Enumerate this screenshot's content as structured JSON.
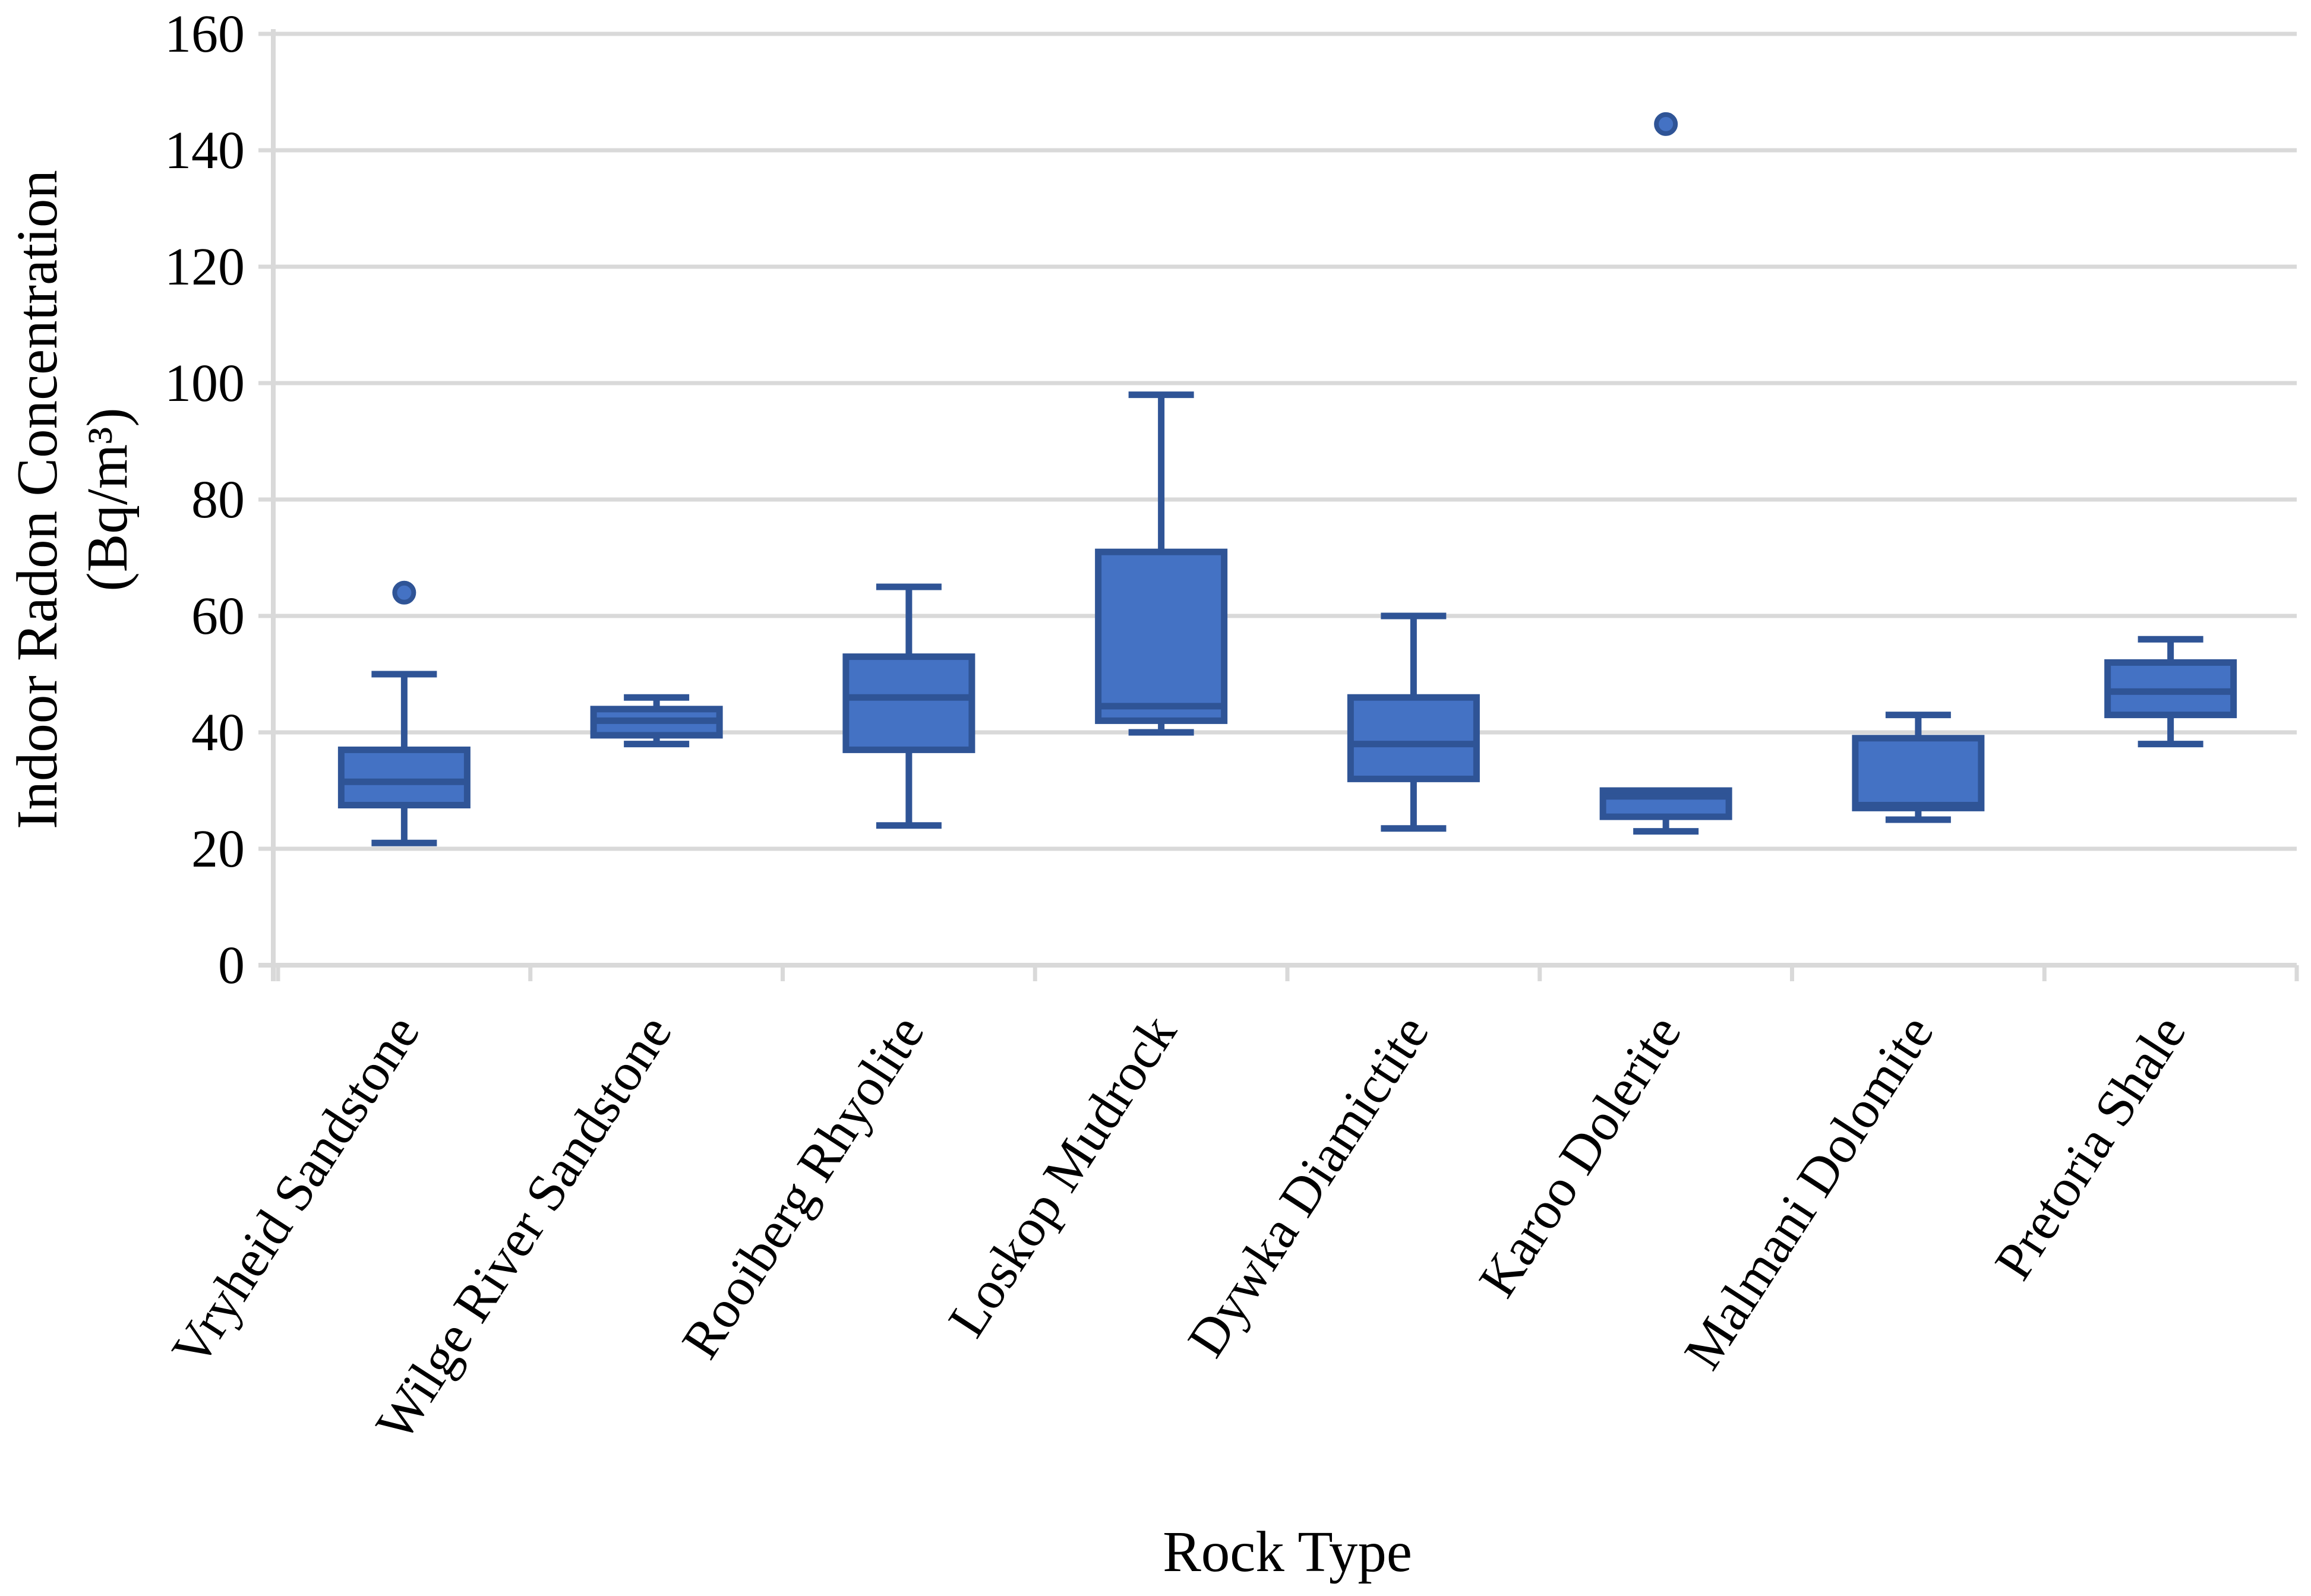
{
  "chart_data": {
    "type": "box",
    "title": "",
    "xlabel": "Rock Type",
    "ylabel_lines": [
      "Indoor Radon Concentration",
      "(Bq/m³)"
    ],
    "ylim": [
      0,
      160
    ],
    "ytick_step": 20,
    "ytick_labels": [
      "0",
      "20",
      "40",
      "60",
      "80",
      "100",
      "120",
      "140",
      "160"
    ],
    "grid": true,
    "legend": "none",
    "categories": [
      "Vryheid Sandstone",
      "Wilge River Sandstone",
      "Rooiberg Rhyolite",
      "Loskop Mudrock",
      "Dywka Diamictite",
      "Karoo Dolerite",
      "Malmani Dolomite",
      "Pretoria Shale"
    ],
    "series": [
      {
        "name": "Vryheid Sandstone",
        "min": 21,
        "q1": 27.5,
        "median": 31.5,
        "q3": 37,
        "max": 50,
        "outliers": [
          64
        ]
      },
      {
        "name": "Wilge River Sandstone",
        "min": 38,
        "q1": 39.5,
        "median": 42,
        "q3": 44,
        "max": 46,
        "outliers": []
      },
      {
        "name": "Rooiberg Rhyolite",
        "min": 24,
        "q1": 37,
        "median": 46,
        "q3": 53,
        "max": 65,
        "outliers": []
      },
      {
        "name": "Loskop Mudrock",
        "min": 40,
        "q1": 42,
        "median": 44.5,
        "q3": 71,
        "max": 98,
        "outliers": []
      },
      {
        "name": "Dywka Diamictite",
        "min": 23.5,
        "q1": 32,
        "median": 38,
        "q3": 46,
        "max": 60,
        "outliers": []
      },
      {
        "name": "Karoo Dolerite",
        "min": 23,
        "q1": 25.5,
        "median": 29,
        "q3": 30,
        "max": 30,
        "outliers": [
          144.5
        ]
      },
      {
        "name": "Malmani Dolomite",
        "min": 25,
        "q1": 27,
        "median": 27.5,
        "q3": 39,
        "max": 43,
        "outliers": []
      },
      {
        "name": "Pretoria Shale",
        "min": 38,
        "q1": 43,
        "median": 47,
        "q3": 52,
        "max": 56,
        "outliers": []
      }
    ],
    "colors": {
      "box_fill": "#4472C4",
      "box_border": "#2F5496",
      "gridline": "#D9D9D9",
      "text": "#000000"
    },
    "x_label_rotation_deg": -57
  }
}
